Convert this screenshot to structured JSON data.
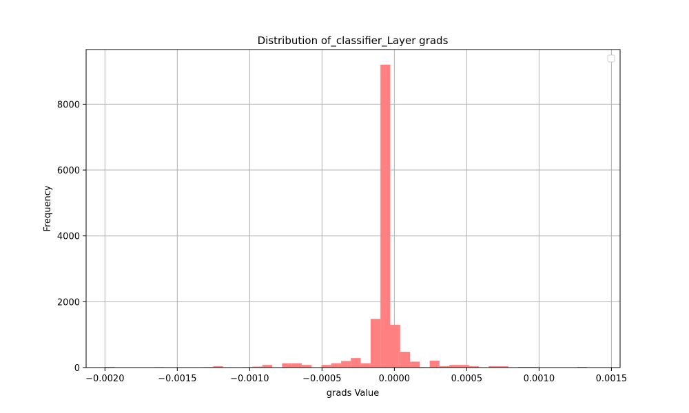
{
  "chart_data": {
    "type": "bar",
    "title": "Distribution of_classifier_Layer grads",
    "xlabel": "grads Value",
    "ylabel": "Frequency",
    "bar_color": "#ff8080",
    "grid": true,
    "legend": {
      "placement": "top-right",
      "entries": []
    },
    "xlim": [
      -0.00213,
      0.00156
    ],
    "ylim": [
      0,
      9660
    ],
    "xticks": [
      -0.002,
      -0.0015,
      -0.001,
      -0.0005,
      0.0,
      0.0005,
      0.001,
      0.0015
    ],
    "xtick_labels": [
      "−0.0020",
      "−0.0015",
      "−0.0010",
      "−0.0005",
      "0.0000",
      "0.0005",
      "0.0010",
      "0.0015"
    ],
    "yticks": [
      0,
      2000,
      4000,
      6000,
      8000
    ],
    "ytick_labels": [
      "0",
      "2000",
      "4000",
      "6000",
      "8000"
    ],
    "bin_edges": [
      -0.002,
      -0.001932,
      -0.001864,
      -0.001796,
      -0.001728,
      -0.00166,
      -0.001592,
      -0.001524,
      -0.001456,
      -0.001388,
      -0.00132,
      -0.001252,
      -0.001184,
      -0.001116,
      -0.001048,
      -0.00098,
      -0.000912,
      -0.000844,
      -0.000776,
      -0.000708,
      -0.00064,
      -0.000572,
      -0.000504,
      -0.000436,
      -0.000368,
      -0.0003,
      -0.000232,
      -0.000164,
      -9.6e-05,
      -2.8e-05,
      4e-05,
      0.000108,
      0.000176,
      0.000244,
      0.000312,
      0.00038,
      0.000448,
      0.000516,
      0.000584,
      0.000652,
      0.00072,
      0.000788,
      0.000856,
      0.000924,
      0.000992,
      0.00106,
      0.001128,
      0.001196,
      0.001264,
      0.001332,
      0.0014
    ],
    "counts": [
      20,
      0,
      0,
      0,
      0,
      15,
      0,
      10,
      0,
      10,
      15,
      40,
      0,
      10,
      15,
      30,
      80,
      0,
      130,
      130,
      80,
      10,
      80,
      130,
      200,
      290,
      130,
      1480,
      9200,
      1300,
      480,
      180,
      15,
      210,
      40,
      80,
      80,
      40,
      0,
      40,
      40,
      0,
      20,
      20,
      0,
      0,
      0,
      0,
      20,
      0
    ]
  }
}
